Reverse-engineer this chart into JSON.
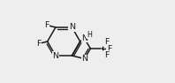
{
  "bg_color": "#eeeeee",
  "bond_color": "#1a1a1a",
  "text_color": "#1a1a1a",
  "line_width": 1.1,
  "font_size": 6.8,
  "fig_width": 1.98,
  "fig_height": 0.94,
  "dpi": 100,
  "xlim": [
    0,
    10
  ],
  "ylim": [
    0,
    5
  ]
}
